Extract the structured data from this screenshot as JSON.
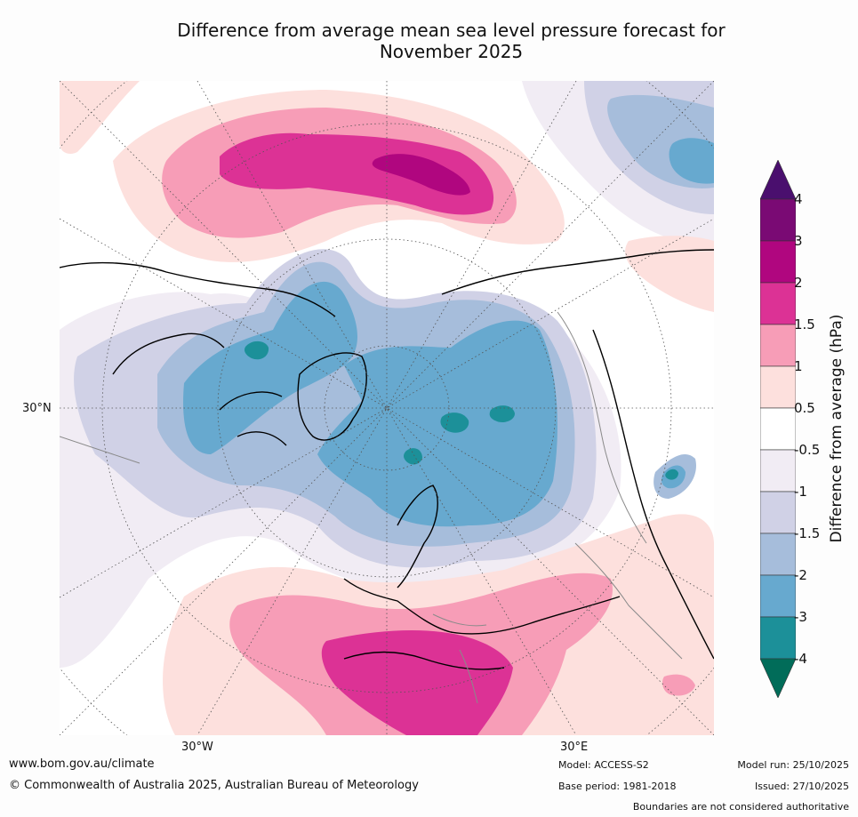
{
  "title": {
    "line1": "Difference from average mean sea level pressure forecast for",
    "line2": "November 2025"
  },
  "map": {
    "projection": "north-polar-stereographic",
    "labels": {
      "lat_30n": "30°N",
      "lon_30w": "30°W",
      "lon_30e": "30°E"
    }
  },
  "legend": {
    "axis_label": "Difference from average (hPa)",
    "tick_labels": [
      "4",
      "3",
      "2",
      "1.5",
      "1",
      "0.5",
      "-0.5",
      "-1",
      "-1.5",
      "-2",
      "-3",
      "-4"
    ],
    "colors": [
      "#4a0f6e",
      "#7a0a74",
      "#b0067f",
      "#dc3295",
      "#f79db7",
      "#fde0dd",
      "#ffffff",
      "#f1ecf4",
      "#d0d1e6",
      "#a6bddb",
      "#67a9cf",
      "#1c9099",
      "#016c59"
    ]
  },
  "footer": {
    "website": "www.bom.gov.au/climate",
    "copyright": "© Commonwealth of Australia 2025, Australian Bureau of Meteorology",
    "model": "Model: ACCESS-S2",
    "base_period": "Base period: 1981-2018",
    "model_run": "Model run: 25/10/2025",
    "issued": "Issued: 27/10/2025",
    "disclaimer": "Boundaries are not considered authoritative"
  }
}
